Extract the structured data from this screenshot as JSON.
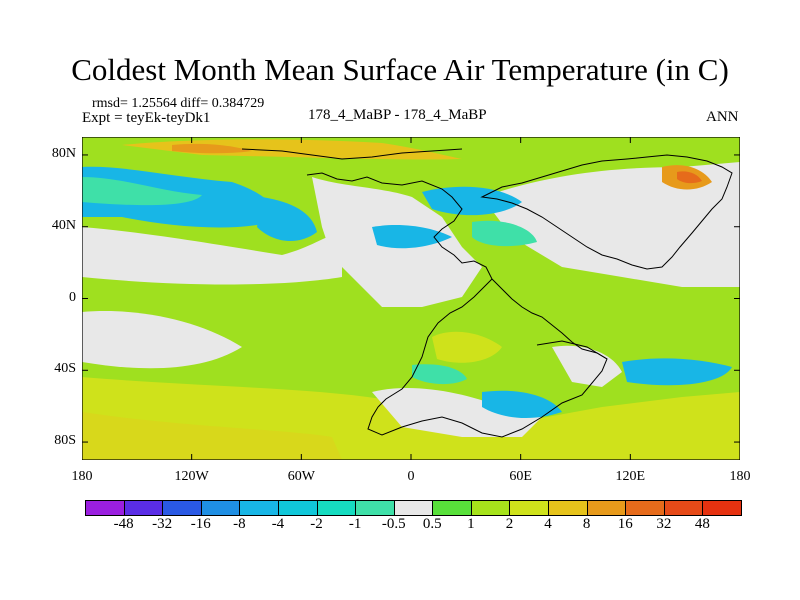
{
  "title": "Coldest Month Mean Surface Air Temperature (in C)",
  "stats": {
    "rmsd": "rmsd= 1.25564 diff= 0.384729"
  },
  "expt": "Expt = teyEk-teyDk1",
  "center_label": "178_4_MaBP - 178_4_MaBP",
  "right_label": "ANN",
  "chart_data": {
    "type": "heatmap",
    "title": "Coldest Month Mean Surface Air Temperature (in C)",
    "xlabel": "",
    "ylabel": "",
    "xlim": [
      -180,
      180
    ],
    "ylim": [
      -90,
      90
    ],
    "x_ticks": [
      {
        "value": -180,
        "label": "180"
      },
      {
        "value": -120,
        "label": "120W"
      },
      {
        "value": -60,
        "label": "60W"
      },
      {
        "value": 0,
        "label": "0"
      },
      {
        "value": 60,
        "label": "60E"
      },
      {
        "value": 120,
        "label": "120E"
      },
      {
        "value": 180,
        "label": "180"
      }
    ],
    "y_ticks": [
      {
        "value": 80,
        "label": "80N"
      },
      {
        "value": 40,
        "label": "40N"
      },
      {
        "value": 0,
        "label": "0"
      },
      {
        "value": -40,
        "label": "40S"
      },
      {
        "value": -80,
        "label": "80S"
      }
    ],
    "colorbar": {
      "levels": [
        "-48",
        "-32",
        "-16",
        "-8",
        "-4",
        "-2",
        "-1",
        "-0.5",
        "0.5",
        "1",
        "2",
        "4",
        "8",
        "16",
        "32",
        "48"
      ],
      "colors": [
        "#9b1fe0",
        "#5a2de6",
        "#2a59e4",
        "#1f8fe4",
        "#18b6e6",
        "#10c7d9",
        "#16dcc0",
        "#3fe0a8",
        "#e8e8e8",
        "#58e03a",
        "#a6e31b",
        "#cfe21b",
        "#e6c31b",
        "#e79a1b",
        "#e66b1b",
        "#e64a18",
        "#e63210"
      ]
    },
    "summary": {
      "rmsd": 1.25564,
      "diff": 0.384729
    }
  }
}
